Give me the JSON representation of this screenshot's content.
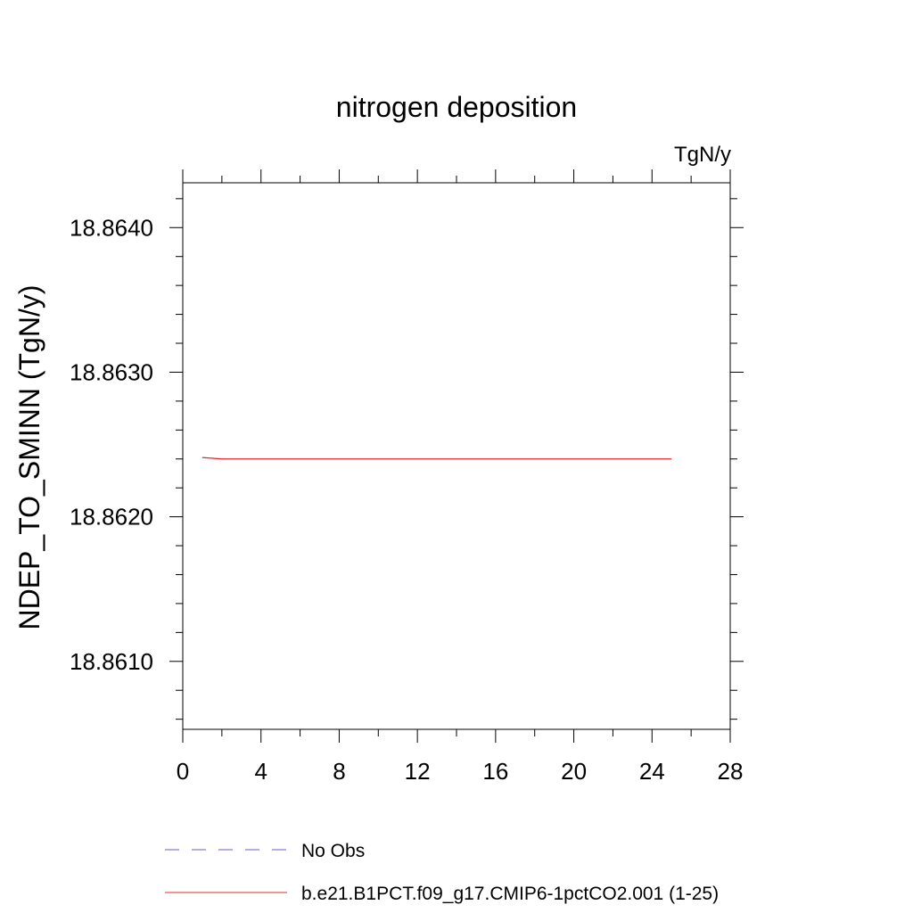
{
  "chart_data": {
    "type": "line",
    "title": "nitrogen deposition",
    "units_label": "TgN/y",
    "ylabel": "NDEP_TO_SMINN  (TgN/y)",
    "xlabel": "",
    "xlim": [
      0,
      28
    ],
    "ylim": [
      18.86053,
      18.86431
    ],
    "x_ticks": [
      0,
      4,
      8,
      12,
      16,
      20,
      24,
      28
    ],
    "x_minor_step": 2,
    "y_ticks": [
      18.861,
      18.862,
      18.863,
      18.864
    ],
    "y_tick_labels": [
      "18.8610",
      "18.8620",
      "18.8630",
      "18.8640"
    ],
    "y_minor_step": 0.0002,
    "grid": false,
    "legend_position": "bottom-left",
    "series": [
      {
        "name": "No Obs",
        "color": "#6a5acd",
        "dash": "dashed",
        "x": [],
        "y": []
      },
      {
        "name": "b.e21.B1PCT.f09_g17.CMIP6-1pctCO2.001 (1-25)",
        "color": "#e8242a",
        "dash": "solid",
        "x": [
          1,
          2,
          3,
          4,
          5,
          6,
          7,
          8,
          9,
          10,
          11,
          12,
          13,
          14,
          15,
          16,
          17,
          18,
          19,
          20,
          21,
          22,
          23,
          24,
          25
        ],
        "y": [
          18.86241,
          18.8624,
          18.8624,
          18.8624,
          18.8624,
          18.8624,
          18.8624,
          18.8624,
          18.8624,
          18.8624,
          18.8624,
          18.8624,
          18.8624,
          18.8624,
          18.8624,
          18.8624,
          18.8624,
          18.8624,
          18.8624,
          18.8624,
          18.8624,
          18.8624,
          18.8624,
          18.8624,
          18.8624
        ]
      }
    ]
  }
}
